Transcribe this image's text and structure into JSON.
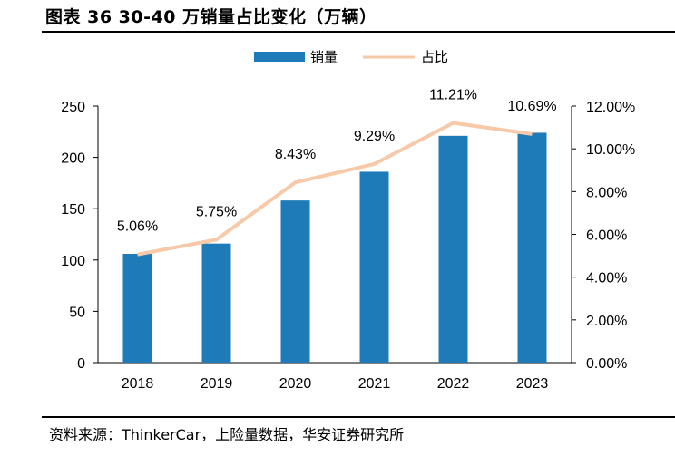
{
  "header": {
    "title": "图表 36 30-40 万销量占比变化（万辆）"
  },
  "footer": {
    "source": "资料来源：ThinkerCar，上险量数据，华安证券研究所"
  },
  "colors": {
    "bar": "#1f7ab8",
    "line": "#f7c9a8",
    "axis": "#000000"
  },
  "chart_data": {
    "type": "bar",
    "categories": [
      "2018",
      "2019",
      "2020",
      "2021",
      "2022",
      "2023"
    ],
    "series": [
      {
        "name": "销量",
        "type": "bar",
        "axis": "left",
        "values": [
          106,
          116,
          158,
          186,
          221,
          224
        ]
      },
      {
        "name": "占比",
        "type": "line",
        "axis": "right",
        "values": [
          5.06,
          5.75,
          8.43,
          9.29,
          11.21,
          10.69
        ],
        "labels": [
          "5.06%",
          "5.75%",
          "8.43%",
          "9.29%",
          "11.21%",
          "10.69%"
        ]
      }
    ],
    "y_left": {
      "ylim": [
        0,
        250
      ],
      "ticks": [
        "0",
        "50",
        "100",
        "150",
        "200",
        "250"
      ]
    },
    "y_right": {
      "ylim": [
        0,
        12
      ],
      "ticks": [
        "0.00%",
        "2.00%",
        "4.00%",
        "6.00%",
        "8.00%",
        "10.00%",
        "12.00%"
      ]
    },
    "legend": {
      "placement": "top-center",
      "entries": [
        "销量",
        "占比"
      ]
    },
    "grid": false
  }
}
